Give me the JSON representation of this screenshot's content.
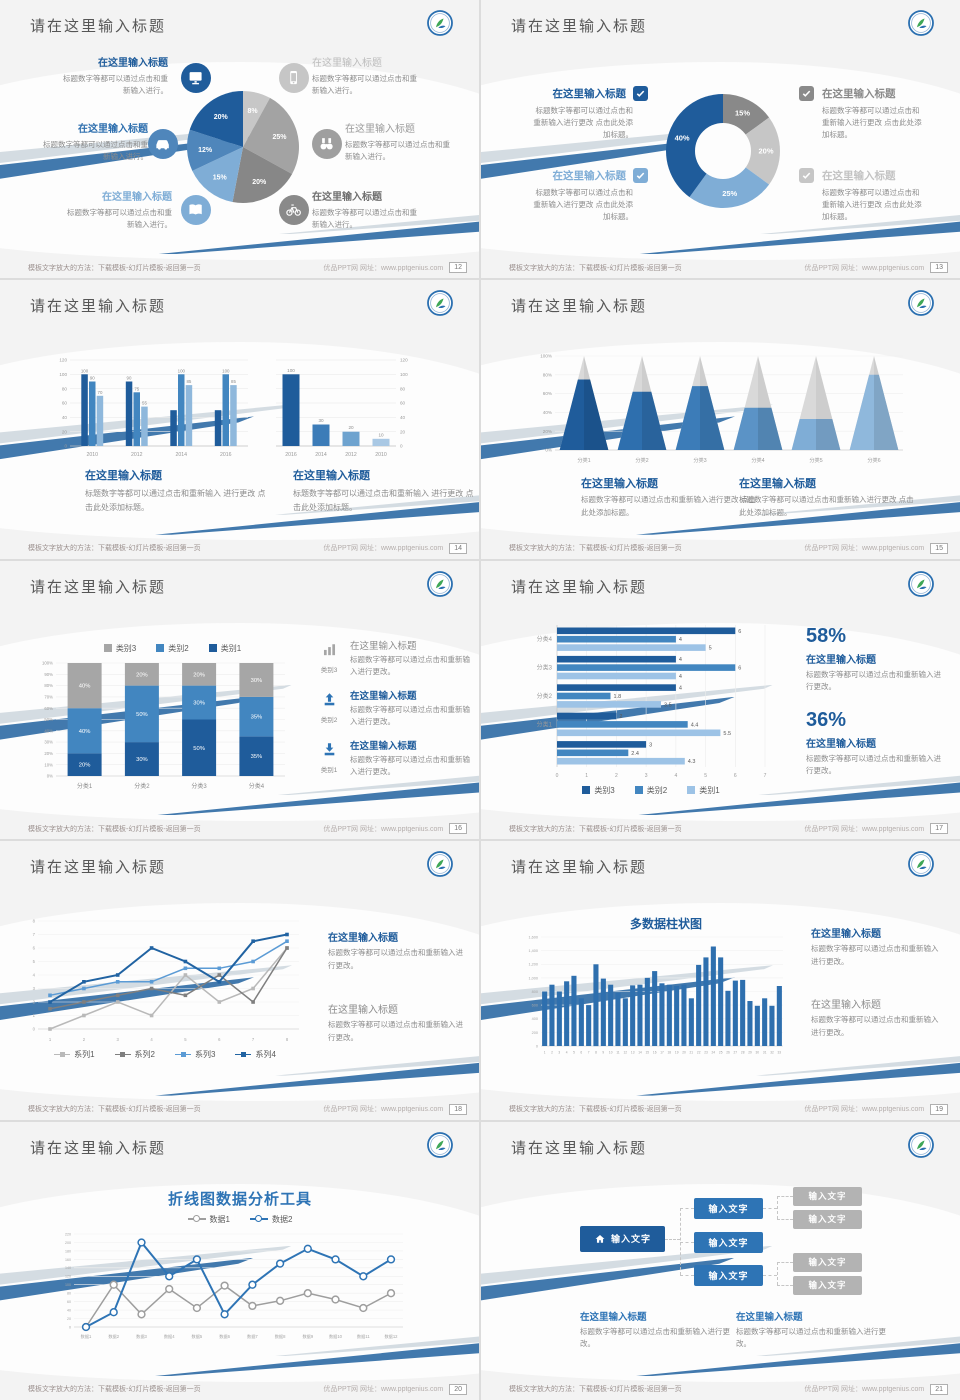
{
  "strings": {
    "slide_title": "请在这里输入标题"
  },
  "footer": {
    "left": "模板文字放大的方法：下载模板-幻灯片模板-返回第一页",
    "right": "优品PPT网 网址：www.pptgenius.com"
  },
  "colors": {
    "accent_dark_blue": "#1f5c9b",
    "accent_mid_blue": "#4286c0",
    "accent_light_blue": "#7fadd6",
    "ribbon_blue": "#4279ad",
    "gray_dark": "#878787",
    "gray_mid": "#a3a3a3",
    "gray_light": "#c7c7c7",
    "heading_gray": "#565656",
    "body_gray": "#8c8c8c"
  },
  "slides": [
    {
      "page": "12",
      "type": "pie_callouts",
      "chart": 0,
      "callouts": [
        {
          "side": "left",
          "title": "在这里输入标题",
          "title_color": "#1f5c9b",
          "bold": true,
          "icon": "monitor",
          "icon_color": "#1f5c9b",
          "body": "标题数字等都可以通过点击和重新输入进行。"
        },
        {
          "side": "left",
          "title": "在这里输入标题",
          "title_color": "#2e6fae",
          "bold": true,
          "icon": "car",
          "icon_color": "#4f86bb",
          "body": "标题数字等都可以通过点击和重新输入进行。"
        },
        {
          "side": "left",
          "title": "在这里输入标题",
          "title_color": "#7fadd6",
          "bold": true,
          "icon": "book",
          "icon_color": "#7fadd6",
          "body": "标题数字等都可以通过点击和重新输入进行。"
        },
        {
          "side": "right",
          "title": "在这里输入标题",
          "title_color": "#bcbcbc",
          "bold": false,
          "icon": "phone",
          "icon_color": "#c6c6c6",
          "body": "标题数字等都可以通过点击和重新输入进行。"
        },
        {
          "side": "right",
          "title": "在这里输入标题",
          "title_color": "#9a9a9a",
          "bold": false,
          "icon": "binoculars",
          "icon_color": "#9f9f9f",
          "body": "标题数字等都可以通过点击和重新输入进行。"
        },
        {
          "side": "right",
          "title": "在这里输入标题",
          "title_color": "#6f6f6f",
          "bold": true,
          "icon": "bicycle",
          "icon_color": "#8a8a8a",
          "body": "标题数字等都可以通过点击和重新输入进行。"
        }
      ]
    },
    {
      "page": "13",
      "type": "donut_checks",
      "chart": 1,
      "blocks": [
        {
          "pos": "tl",
          "title": "在这里输入标题",
          "title_color": "#1f5c9b",
          "check_color": "#1f5c9b",
          "body": "标题数字等都可以通过点击和重新输入进行更改 点击此处添加标题。"
        },
        {
          "pos": "bl",
          "title": "在这里输入标题",
          "title_color": "#7fadd6",
          "check_color": "#7fadd6",
          "body": "标题数字等都可以通过点击和重新输入进行更改 点击此处添加标题。"
        },
        {
          "pos": "tr",
          "title": "在这里输入标题",
          "title_color": "#8a8a8a",
          "check_color": "#8a8a8a",
          "body": "标题数字等都可以通过点击和重新输入进行更改 点击此处添加标题。"
        },
        {
          "pos": "br",
          "title": "在这里输入标题",
          "title_color": "#c3c3c3",
          "check_color": "#c6c6c6",
          "body": "标题数字等都可以通过点击和重新输入进行更改 点击此处添加标题。"
        }
      ]
    },
    {
      "page": "14",
      "type": "two_bars",
      "charts": [
        2,
        3
      ],
      "blocks": [
        {
          "title": "在这里输入标题",
          "title_color": "#1f5c9b",
          "body": "标题数字等都可以通过点击和重新输入 进行更改 点击此处添加标题。"
        },
        {
          "title": "在这里输入标题",
          "title_color": "#1f5c9b",
          "body": "标题数字等都可以通过点击和重新输入 进行更改 点击此处添加标题。"
        }
      ]
    },
    {
      "page": "15",
      "type": "pyramids",
      "chart": 4,
      "blocks": [
        {
          "title": "在这里输入标题",
          "title_color": "#1f5c9b",
          "body": "标题数字等都可以通过点击和重新输入进行更改 点击此处添加标题。"
        },
        {
          "title": "在这里输入标题",
          "title_color": "#1f5c9b",
          "body": "标题数字等都可以通过点击和重新输入进行更改 点击此处添加标题。"
        }
      ]
    },
    {
      "page": "16",
      "type": "stacked",
      "chart": 5,
      "items": [
        {
          "icon": "bars",
          "icon_color": "#a6a6a6",
          "label": "类别3",
          "title": "在这里输入标题",
          "title_color": "#8c8c8c",
          "bold": false,
          "body": "标题数字等都可以通过点击和重新输入进行更改。"
        },
        {
          "icon": "upload",
          "icon_color": "#2e74b5",
          "label": "类别2",
          "title": "在这里输入标题",
          "title_color": "#1f5c9b",
          "bold": true,
          "body": "标题数字等都可以通过点击和重新输入进行更改。"
        },
        {
          "icon": "download",
          "icon_color": "#2e74b5",
          "label": "类别1",
          "title": "在这里输入标题",
          "title_color": "#1f5c9b",
          "bold": true,
          "body": "标题数字等都可以通过点击和重新输入进行更改。"
        }
      ]
    },
    {
      "page": "17",
      "type": "hbars",
      "chart": 6,
      "stats": [
        {
          "value": "58%",
          "title": "在这里输入标题",
          "body": "标题数字等都可以通过点击和重新输入进行更改。"
        },
        {
          "value": "36%",
          "title": "在这里输入标题",
          "body": "标题数字等都可以通过点击和重新输入进行更改。"
        }
      ]
    },
    {
      "page": "18",
      "type": "lines",
      "chart": 7,
      "blocks": [
        {
          "title": "在这里输入标题",
          "title_color": "#1f5c9b",
          "bold": true,
          "body": "标题数字等都可以通过点击和重新输入进行更改。"
        },
        {
          "title": "在这里输入标题",
          "title_color": "#8c8c8c",
          "bold": false,
          "body": "标题数字等都可以通过点击和重新输入进行更改。"
        }
      ]
    },
    {
      "page": "19",
      "type": "columns",
      "chart": 8,
      "blocks": [
        {
          "title": "在这里输入标题",
          "title_color": "#1f5c9b",
          "bold": true,
          "body": "标题数字等都可以通过点击和重新输入进行更改。"
        },
        {
          "title": "在这里输入标题",
          "title_color": "#8c8c8c",
          "bold": false,
          "body": "标题数字等都可以通过点击和重新输入进行更改。"
        }
      ]
    },
    {
      "page": "20",
      "type": "lines_big",
      "chart": 9
    },
    {
      "page": "21",
      "type": "tree",
      "tree": {
        "root": "输入文字",
        "children": [
          "输入文字",
          "输入文字",
          "输入文字"
        ],
        "leaves": [
          "输入文字",
          "输入文字",
          "输入文字",
          "输入文字"
        ]
      },
      "blocks": [
        {
          "title": "在这里输入标题",
          "title_color": "#2e74b5",
          "body": "标题数字等都可以通过点击和重新输入进行更改。"
        },
        {
          "title": "在这里输入标题",
          "title_color": "#2e74b5",
          "body": "标题数字等都可以通过点击和重新输入进行更改。"
        }
      ]
    }
  ],
  "chart_data": [
    {
      "id": "composition-pie",
      "slide_page": "12",
      "type": "pie",
      "values": [
        8,
        25,
        20,
        15,
        12,
        20
      ],
      "labels": [
        "8%",
        "25%",
        "20%",
        "15%",
        "12%",
        "20%"
      ],
      "colors": [
        "#c7c7c7",
        "#a3a3a3",
        "#878787",
        "#7fadd6",
        "#4f86bb",
        "#1f5c9b"
      ],
      "note": "clockwise from 12 o'clock"
    },
    {
      "id": "share-donut",
      "slide_page": "13",
      "type": "pie",
      "donut": true,
      "values": [
        15,
        20,
        25,
        40
      ],
      "labels": [
        "15%",
        "20%",
        "25%",
        "40%"
      ],
      "colors": [
        "#898989",
        "#c6c6c6",
        "#7fadd6",
        "#1f5c9b"
      ]
    },
    {
      "id": "grouped-columns",
      "slide_page": "14",
      "type": "bar",
      "categories": [
        "2010",
        "2012",
        "2014",
        "2016"
      ],
      "series": [
        {
          "name": "series-dark",
          "color": "#1f5c9b",
          "values": [
            100,
            90,
            50,
            50
          ],
          "labels": [
            "100",
            "90",
            "",
            ""
          ]
        },
        {
          "name": "series-mid",
          "color": "#4286c0",
          "values": [
            90,
            75,
            100,
            100
          ],
          "labels": [
            "90",
            "75",
            "100",
            "100"
          ]
        },
        {
          "name": "series-light",
          "color": "#8fb8dc",
          "values": [
            70,
            55,
            85,
            85
          ],
          "labels": [
            "70",
            "55",
            "85",
            "85"
          ]
        }
      ],
      "ylim": [
        0,
        120
      ],
      "ystep": 20
    },
    {
      "id": "single-columns",
      "slide_page": "14",
      "type": "bar",
      "y_axis": "right",
      "categories": [
        "2016",
        "2014",
        "2012",
        "2010"
      ],
      "values": [
        100,
        30,
        20,
        10
      ],
      "labels": [
        "100",
        "30",
        "20",
        "10"
      ],
      "colors": [
        "#1f5c9b",
        "#3c7cb8",
        "#6ea3cf",
        "#a9c8e4"
      ],
      "ylim": [
        0,
        120
      ],
      "ystep": 20
    },
    {
      "id": "pyramid-percent",
      "slide_page": "15",
      "type": "pyramid",
      "categories": [
        "分类1",
        "分类2",
        "分类3",
        "分类4",
        "分类5",
        "分类6"
      ],
      "fill_percent": [
        75,
        62,
        68,
        45,
        33,
        80
      ],
      "colors": [
        "#1f5c9b",
        "#2e6fae",
        "#3c7cb8",
        "#5b93c6",
        "#7fadd6",
        "#8fb8dc"
      ],
      "top_color": "#d9d9d9",
      "ylim": [
        0,
        100
      ],
      "ystep": 20
    },
    {
      "id": "stacked-percent",
      "slide_page": "16",
      "type": "bar",
      "stacked": true,
      "categories": [
        "分类1",
        "分类2",
        "分类3",
        "分类4"
      ],
      "series": [
        {
          "name": "类别1",
          "color": "#1f5c9b",
          "values": [
            20,
            30,
            50,
            35
          ]
        },
        {
          "name": "类别2",
          "color": "#4286c0",
          "values": [
            40,
            50,
            30,
            35
          ]
        },
        {
          "name": "类别3",
          "color": "#a6a6a6",
          "values": [
            40,
            20,
            20,
            30
          ]
        }
      ],
      "legend_order": [
        "类别3",
        "类别2",
        "类别1"
      ],
      "ylim": [
        0,
        100
      ],
      "ystep": 10
    },
    {
      "id": "horizontal-bars",
      "slide_page": "17",
      "type": "bar",
      "orientation": "horizontal",
      "categories": [
        "分类4",
        "分类3",
        "分类2",
        "分类1",
        ""
      ],
      "series": [
        {
          "name": "类别3",
          "color": "#1f5c9b",
          "values": [
            6,
            4,
            4,
            2,
            3
          ]
        },
        {
          "name": "类别2",
          "color": "#4286c0",
          "values": [
            4,
            6,
            1.8,
            4.4,
            2.4
          ]
        },
        {
          "name": "类别1",
          "color": "#9dc3e6",
          "values": [
            5,
            4,
            3.5,
            5.5,
            4.3
          ]
        }
      ],
      "xlim": [
        0,
        7
      ],
      "xstep": 1
    },
    {
      "id": "four-lines",
      "slide_page": "18",
      "type": "line",
      "marker": "square",
      "x": [
        1,
        2,
        3,
        4,
        5,
        6,
        7,
        8
      ],
      "series": [
        {
          "name": "系列1",
          "color": "#b9b9b9",
          "values": [
            0,
            1,
            2,
            1,
            4,
            2,
            3,
            6
          ]
        },
        {
          "name": "系列2",
          "color": "#7f7f7f",
          "values": [
            1.5,
            2,
            2.5,
            3,
            2.5,
            4,
            2,
            6
          ]
        },
        {
          "name": "系列3",
          "color": "#5b9bd5",
          "values": [
            2.5,
            3,
            3.5,
            3.5,
            4.5,
            4.5,
            5,
            6.5
          ]
        },
        {
          "name": "系列4",
          "color": "#2163a2",
          "values": [
            2,
            3.5,
            4,
            6,
            5,
            3.5,
            6.5,
            7
          ]
        }
      ],
      "ylim": [
        0,
        8
      ],
      "ystep": 1
    },
    {
      "id": "multi-columns",
      "slide_page": "19",
      "type": "bar",
      "title": "多数据柱状图",
      "color": "#2e6fae",
      "categories": [
        "1",
        "2",
        "3",
        "4",
        "5",
        "6",
        "7",
        "8",
        "9",
        "10",
        "11",
        "12",
        "13",
        "14",
        "15",
        "16",
        "17",
        "18",
        "19",
        "20",
        "21",
        "22",
        "23",
        "24",
        "25",
        "26",
        "27",
        "28",
        "29",
        "30",
        "31",
        "32",
        "33"
      ],
      "values": [
        800,
        900,
        800,
        950,
        1030,
        700,
        600,
        1200,
        990,
        900,
        780,
        700,
        890,
        900,
        1000,
        1100,
        920,
        900,
        880,
        900,
        700,
        1190,
        1300,
        1460,
        1300,
        810,
        960,
        970,
        660,
        590,
        700,
        590,
        880
      ],
      "ylim": [
        0,
        1600
      ],
      "ystep": 200
    },
    {
      "id": "two-lines",
      "slide_page": "20",
      "type": "line",
      "title": "折线图数据分析工具",
      "marker": "circle",
      "categories": [
        "数据1",
        "数据2",
        "数据3",
        "数据4",
        "数据5",
        "数据6",
        "数据7",
        "数据8",
        "数据9",
        "数据10",
        "数据11",
        "数据12"
      ],
      "series": [
        {
          "name": "数据1",
          "color": "#9e9e9e",
          "values": [
            0,
            100,
            30,
            90,
            45,
            98,
            50,
            62,
            80,
            65,
            45,
            80
          ]
        },
        {
          "name": "数据2",
          "color": "#2e74b5",
          "values": [
            0,
            35,
            200,
            120,
            160,
            30,
            100,
            150,
            185,
            160,
            120,
            160
          ]
        }
      ],
      "ylim": [
        0,
        220
      ],
      "ystep": 20
    }
  ]
}
